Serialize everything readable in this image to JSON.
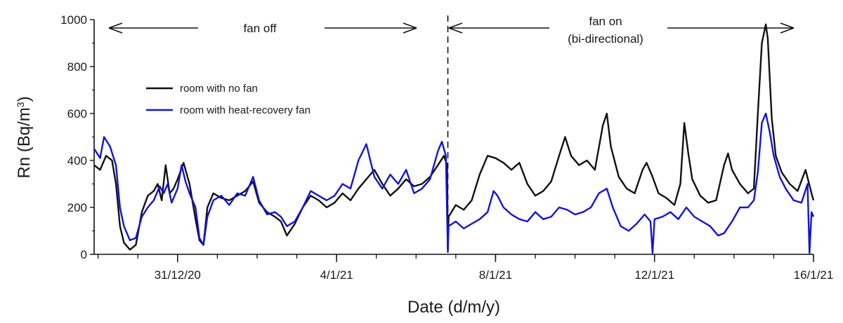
{
  "chart_data": {
    "type": "line",
    "xlabel": "Date (d/m/y)",
    "ylabel_prefix": "Rn (Bq/m",
    "ylabel_sup": "3",
    "ylabel_suffix": ")",
    "x_range_days": [
      -3.1,
      15
    ],
    "ylim": [
      0,
      1000
    ],
    "x_ticks": [
      {
        "label": "31/12/20",
        "day": -1
      },
      {
        "label": "4/1/21",
        "day": 3
      },
      {
        "label": "8/1/21",
        "day": 7
      },
      {
        "label": "12/1/21",
        "day": 11
      },
      {
        "label": "16/1/21",
        "day": 15
      }
    ],
    "y_ticks": [
      "0",
      "200",
      "400",
      "600",
      "800",
      "1000"
    ],
    "y_tick_values": [
      0,
      200,
      400,
      600,
      800,
      1000
    ],
    "grid": false,
    "legend_position": "top-left",
    "annotations": {
      "fan_off": "fan off",
      "fan_on_line1": "fan on",
      "fan_on_line2": "(bi-directional)",
      "fan_switch_day": 5.8
    },
    "series": [
      {
        "name": "room with no fan",
        "color": "#111111",
        "points": [
          [
            -3.1,
            380
          ],
          [
            -2.95,
            360
          ],
          [
            -2.8,
            420
          ],
          [
            -2.65,
            400
          ],
          [
            -2.55,
            300
          ],
          [
            -2.45,
            120
          ],
          [
            -2.35,
            50
          ],
          [
            -2.2,
            20
          ],
          [
            -2.05,
            40
          ],
          [
            -1.9,
            180
          ],
          [
            -1.75,
            250
          ],
          [
            -1.6,
            270
          ],
          [
            -1.5,
            300
          ],
          [
            -1.4,
            230
          ],
          [
            -1.3,
            380
          ],
          [
            -1.2,
            260
          ],
          [
            -1.1,
            280
          ],
          [
            -1.0,
            320
          ],
          [
            -0.85,
            390
          ],
          [
            -0.7,
            300
          ],
          [
            -0.55,
            150
          ],
          [
            -0.45,
            60
          ],
          [
            -0.35,
            40
          ],
          [
            -0.25,
            200
          ],
          [
            -0.1,
            260
          ],
          [
            0.1,
            240
          ],
          [
            0.3,
            230
          ],
          [
            0.5,
            250
          ],
          [
            0.7,
            270
          ],
          [
            0.9,
            310
          ],
          [
            1.05,
            220
          ],
          [
            1.25,
            180
          ],
          [
            1.45,
            160
          ],
          [
            1.6,
            140
          ],
          [
            1.75,
            80
          ],
          [
            1.95,
            130
          ],
          [
            2.15,
            200
          ],
          [
            2.35,
            250
          ],
          [
            2.55,
            230
          ],
          [
            2.75,
            200
          ],
          [
            2.95,
            220
          ],
          [
            3.15,
            260
          ],
          [
            3.35,
            230
          ],
          [
            3.55,
            280
          ],
          [
            3.75,
            320
          ],
          [
            3.95,
            360
          ],
          [
            4.15,
            300
          ],
          [
            4.35,
            250
          ],
          [
            4.55,
            280
          ],
          [
            4.75,
            320
          ],
          [
            4.95,
            290
          ],
          [
            5.15,
            300
          ],
          [
            5.35,
            330
          ],
          [
            5.55,
            380
          ],
          [
            5.7,
            420
          ],
          [
            5.78,
            380
          ],
          [
            5.8,
            20
          ],
          [
            5.82,
            160
          ],
          [
            6.0,
            210
          ],
          [
            6.2,
            190
          ],
          [
            6.4,
            230
          ],
          [
            6.6,
            340
          ],
          [
            6.8,
            420
          ],
          [
            7.0,
            410
          ],
          [
            7.2,
            390
          ],
          [
            7.4,
            360
          ],
          [
            7.6,
            390
          ],
          [
            7.8,
            300
          ],
          [
            8.0,
            250
          ],
          [
            8.2,
            270
          ],
          [
            8.4,
            310
          ],
          [
            8.6,
            420
          ],
          [
            8.75,
            500
          ],
          [
            8.9,
            420
          ],
          [
            9.1,
            380
          ],
          [
            9.3,
            400
          ],
          [
            9.5,
            360
          ],
          [
            9.7,
            550
          ],
          [
            9.8,
            600
          ],
          [
            9.9,
            460
          ],
          [
            10.1,
            330
          ],
          [
            10.3,
            280
          ],
          [
            10.5,
            260
          ],
          [
            10.7,
            360
          ],
          [
            10.8,
            390
          ],
          [
            10.95,
            330
          ],
          [
            11.1,
            260
          ],
          [
            11.3,
            240
          ],
          [
            11.5,
            210
          ],
          [
            11.65,
            300
          ],
          [
            11.75,
            560
          ],
          [
            11.85,
            430
          ],
          [
            11.95,
            320
          ],
          [
            12.15,
            250
          ],
          [
            12.35,
            220
          ],
          [
            12.55,
            230
          ],
          [
            12.75,
            380
          ],
          [
            12.85,
            430
          ],
          [
            12.95,
            360
          ],
          [
            13.15,
            300
          ],
          [
            13.35,
            260
          ],
          [
            13.5,
            280
          ],
          [
            13.6,
            600
          ],
          [
            13.7,
            900
          ],
          [
            13.8,
            980
          ],
          [
            13.85,
            920
          ],
          [
            13.95,
            580
          ],
          [
            14.05,
            420
          ],
          [
            14.2,
            350
          ],
          [
            14.4,
            300
          ],
          [
            14.6,
            270
          ],
          [
            14.8,
            360
          ],
          [
            14.95,
            260
          ],
          [
            15.0,
            230
          ]
        ]
      },
      {
        "name": "room with heat-recovery fan",
        "color": "#1414d2",
        "points": [
          [
            -3.1,
            450
          ],
          [
            -2.95,
            410
          ],
          [
            -2.85,
            500
          ],
          [
            -2.7,
            460
          ],
          [
            -2.55,
            380
          ],
          [
            -2.45,
            200
          ],
          [
            -2.35,
            120
          ],
          [
            -2.2,
            60
          ],
          [
            -2.05,
            70
          ],
          [
            -1.9,
            160
          ],
          [
            -1.75,
            200
          ],
          [
            -1.6,
            230
          ],
          [
            -1.45,
            290
          ],
          [
            -1.35,
            260
          ],
          [
            -1.25,
            300
          ],
          [
            -1.15,
            220
          ],
          [
            -1.0,
            280
          ],
          [
            -0.9,
            380
          ],
          [
            -0.8,
            310
          ],
          [
            -0.7,
            260
          ],
          [
            -0.55,
            200
          ],
          [
            -0.45,
            70
          ],
          [
            -0.35,
            40
          ],
          [
            -0.25,
            160
          ],
          [
            -0.1,
            230
          ],
          [
            0.1,
            250
          ],
          [
            0.3,
            210
          ],
          [
            0.5,
            260
          ],
          [
            0.7,
            250
          ],
          [
            0.9,
            330
          ],
          [
            1.05,
            230
          ],
          [
            1.25,
            170
          ],
          [
            1.45,
            180
          ],
          [
            1.6,
            160
          ],
          [
            1.75,
            120
          ],
          [
            1.95,
            140
          ],
          [
            2.15,
            200
          ],
          [
            2.35,
            270
          ],
          [
            2.55,
            250
          ],
          [
            2.75,
            230
          ],
          [
            2.95,
            250
          ],
          [
            3.15,
            300
          ],
          [
            3.35,
            280
          ],
          [
            3.55,
            400
          ],
          [
            3.75,
            470
          ],
          [
            3.95,
            330
          ],
          [
            4.15,
            280
          ],
          [
            4.35,
            340
          ],
          [
            4.55,
            300
          ],
          [
            4.75,
            360
          ],
          [
            4.95,
            260
          ],
          [
            5.15,
            280
          ],
          [
            5.35,
            320
          ],
          [
            5.55,
            440
          ],
          [
            5.65,
            480
          ],
          [
            5.75,
            420
          ],
          [
            5.8,
            10
          ],
          [
            5.82,
            120
          ],
          [
            6.0,
            140
          ],
          [
            6.2,
            110
          ],
          [
            6.4,
            130
          ],
          [
            6.6,
            150
          ],
          [
            6.8,
            180
          ],
          [
            6.95,
            270
          ],
          [
            7.05,
            250
          ],
          [
            7.2,
            200
          ],
          [
            7.4,
            170
          ],
          [
            7.6,
            150
          ],
          [
            7.8,
            140
          ],
          [
            8.0,
            180
          ],
          [
            8.2,
            150
          ],
          [
            8.4,
            160
          ],
          [
            8.6,
            200
          ],
          [
            8.8,
            190
          ],
          [
            9.0,
            170
          ],
          [
            9.2,
            180
          ],
          [
            9.4,
            200
          ],
          [
            9.6,
            260
          ],
          [
            9.8,
            280
          ],
          [
            9.95,
            200
          ],
          [
            10.15,
            120
          ],
          [
            10.35,
            100
          ],
          [
            10.55,
            130
          ],
          [
            10.75,
            170
          ],
          [
            10.9,
            140
          ],
          [
            10.95,
            5
          ],
          [
            11.0,
            150
          ],
          [
            11.2,
            160
          ],
          [
            11.4,
            180
          ],
          [
            11.6,
            150
          ],
          [
            11.8,
            200
          ],
          [
            12.0,
            160
          ],
          [
            12.2,
            140
          ],
          [
            12.4,
            120
          ],
          [
            12.6,
            80
          ],
          [
            12.75,
            90
          ],
          [
            12.95,
            140
          ],
          [
            13.15,
            200
          ],
          [
            13.35,
            200
          ],
          [
            13.5,
            230
          ],
          [
            13.6,
            350
          ],
          [
            13.7,
            560
          ],
          [
            13.8,
            600
          ],
          [
            13.9,
            520
          ],
          [
            14.0,
            420
          ],
          [
            14.15,
            330
          ],
          [
            14.3,
            280
          ],
          [
            14.5,
            230
          ],
          [
            14.7,
            220
          ],
          [
            14.85,
            300
          ],
          [
            14.9,
            5
          ],
          [
            14.95,
            180
          ],
          [
            15.0,
            160
          ]
        ]
      }
    ]
  }
}
